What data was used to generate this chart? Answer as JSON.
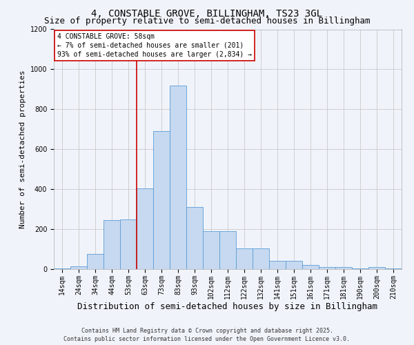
{
  "title": "4, CONSTABLE GROVE, BILLINGHAM, TS23 3GL",
  "subtitle": "Size of property relative to semi-detached houses in Billingham",
  "xlabel": "Distribution of semi-detached houses by size in Billingham",
  "ylabel": "Number of semi-detached properties",
  "categories": [
    "14sqm",
    "24sqm",
    "34sqm",
    "44sqm",
    "53sqm",
    "63sqm",
    "73sqm",
    "83sqm",
    "93sqm",
    "102sqm",
    "112sqm",
    "122sqm",
    "132sqm",
    "141sqm",
    "151sqm",
    "161sqm",
    "171sqm",
    "181sqm",
    "190sqm",
    "200sqm",
    "210sqm"
  ],
  "values": [
    5,
    15,
    75,
    245,
    250,
    405,
    690,
    920,
    310,
    190,
    190,
    105,
    105,
    40,
    40,
    20,
    10,
    10,
    3,
    10,
    3
  ],
  "bar_color": "#c6d9f0",
  "bar_edge_color": "#5b9bd5",
  "red_line_x": 4.5,
  "annotation_text": "4 CONSTABLE GROVE: 58sqm\n← 7% of semi-detached houses are smaller (201)\n93% of semi-detached houses are larger (2,834) →",
  "ylim": [
    0,
    1200
  ],
  "yticks": [
    0,
    200,
    400,
    600,
    800,
    1000,
    1200
  ],
  "footer_line1": "Contains HM Land Registry data © Crown copyright and database right 2025.",
  "footer_line2": "Contains public sector information licensed under the Open Government Licence v3.0.",
  "bg_color": "#f0f4fa",
  "grid_color": "#c8c8c8",
  "annotation_box_color": "#ffffff",
  "annotation_box_edge": "#cc0000",
  "red_line_color": "#cc0000",
  "title_fontsize": 10,
  "subtitle_fontsize": 9,
  "axis_label_fontsize": 8,
  "tick_fontsize": 7,
  "annotation_fontsize": 7,
  "footer_fontsize": 6
}
